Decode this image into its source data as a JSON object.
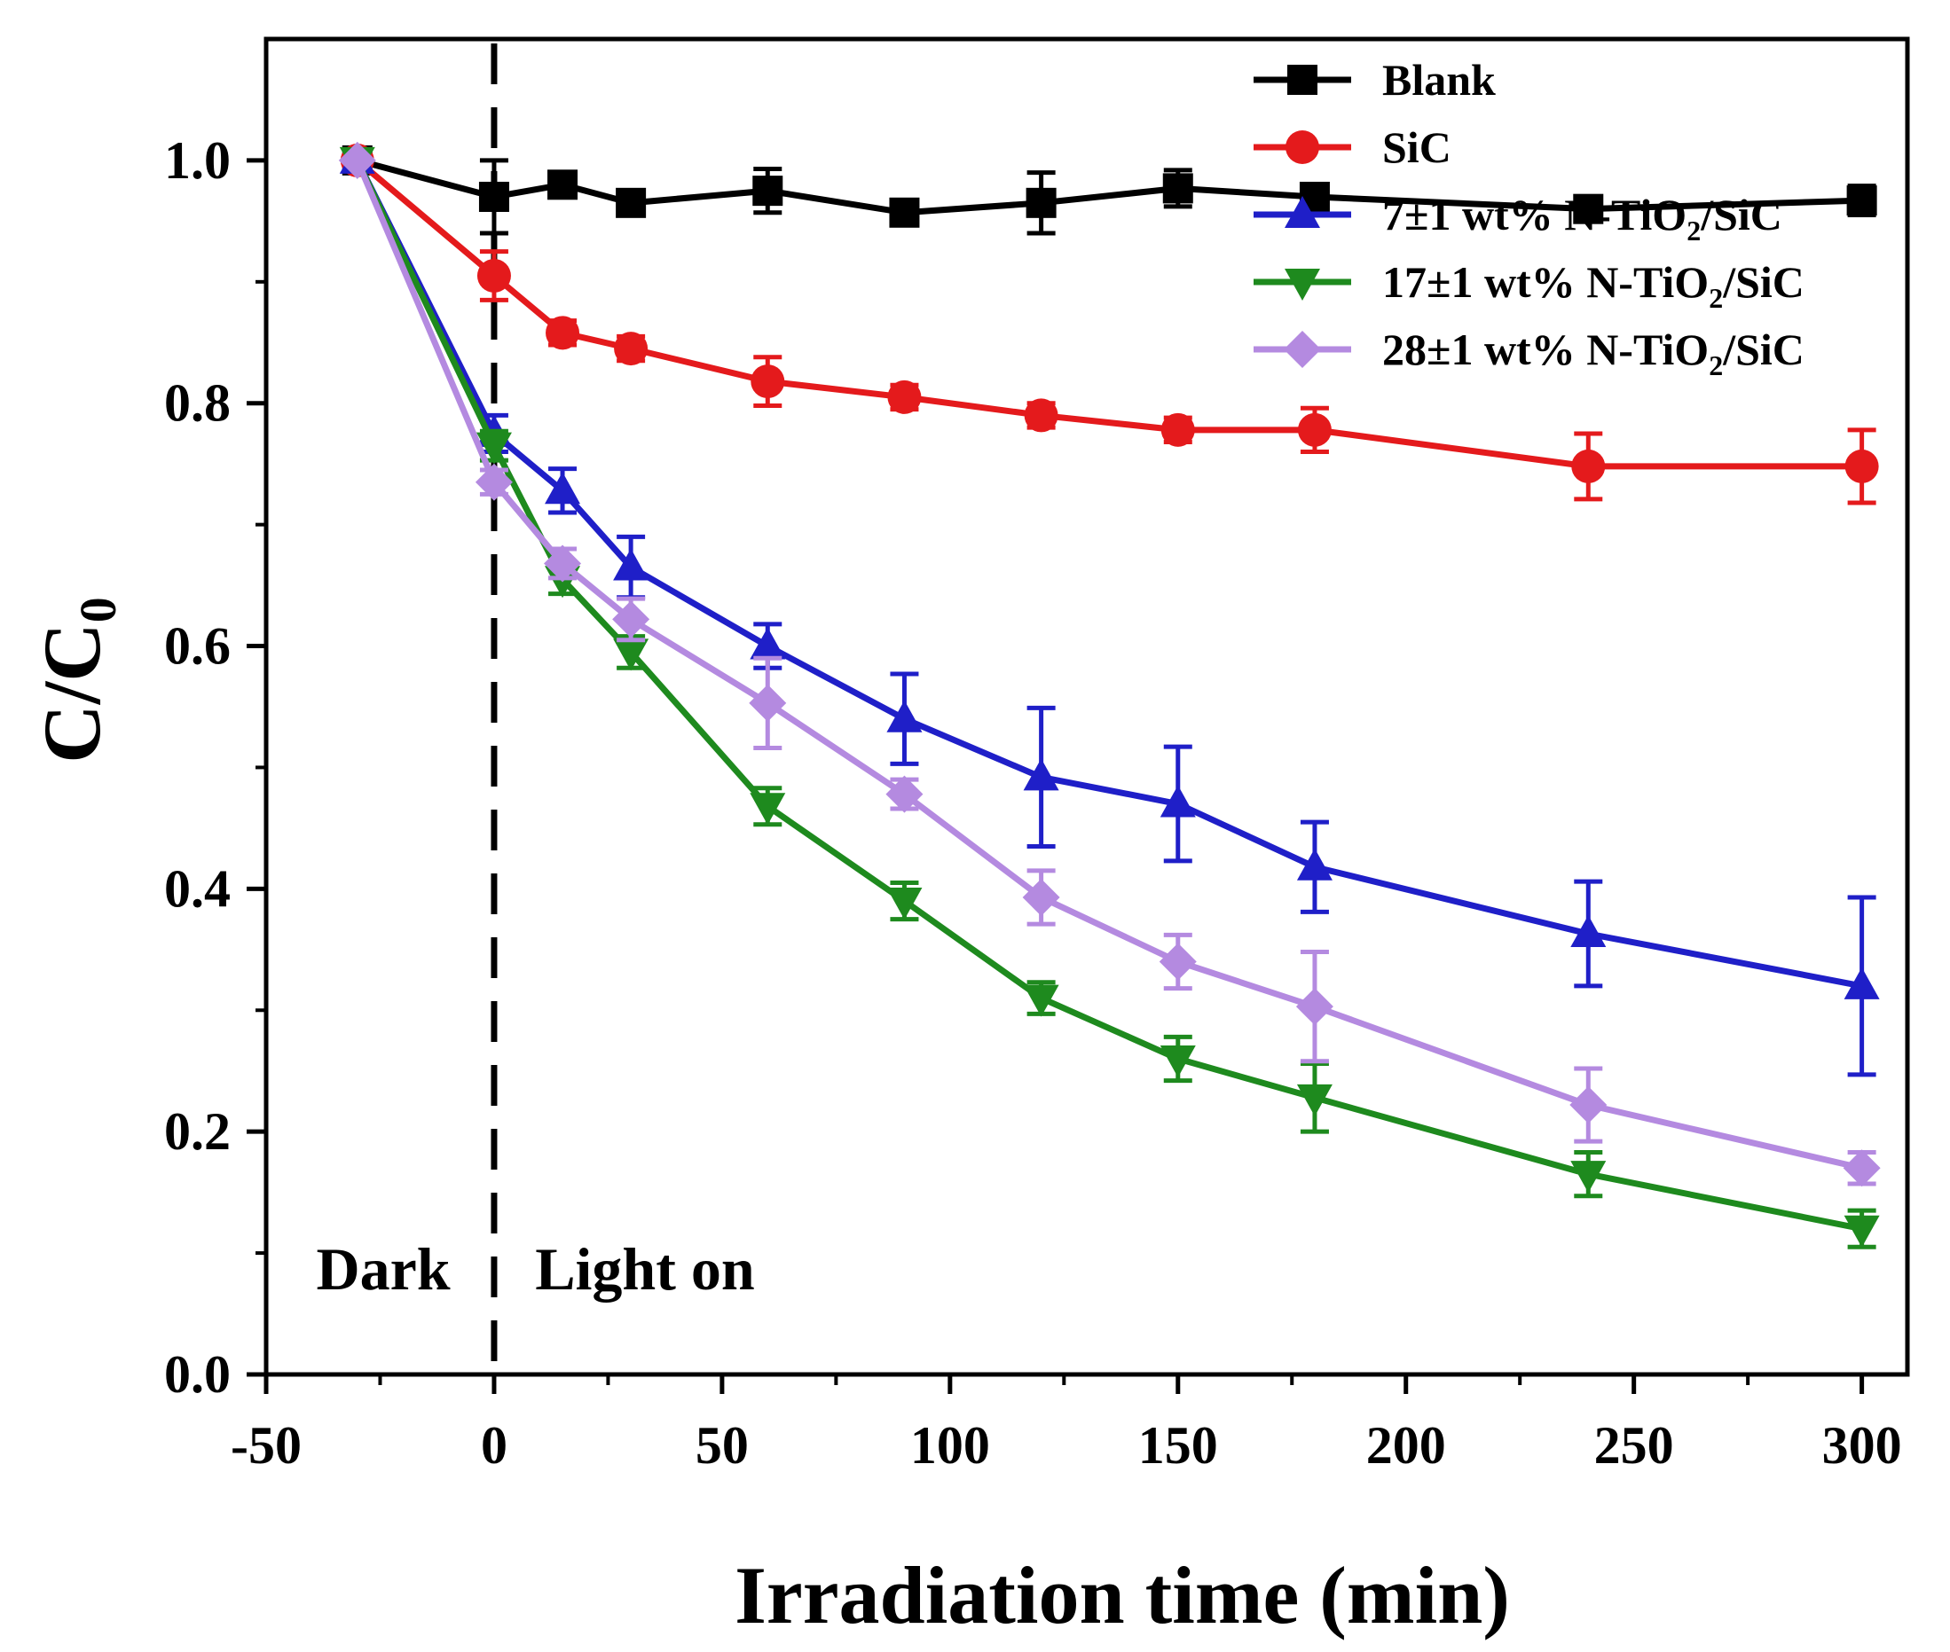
{
  "chart_data": {
    "type": "line",
    "xlabel": "Irradiation time  (min)",
    "ylabel": "C/C",
    "ylabel_sub": "0",
    "xlim": [
      -50,
      310
    ],
    "ylim": [
      0,
      1.1
    ],
    "xticks": [
      -50,
      0,
      50,
      100,
      150,
      200,
      250,
      300
    ],
    "xtick_labels": [
      "-50",
      "0",
      "50",
      "100",
      "150",
      "200",
      "250",
      "300"
    ],
    "yticks": [
      0,
      0.2,
      0.4,
      0.6,
      0.8,
      1.0
    ],
    "ytick_labels": [
      "0.0",
      "0.2",
      "0.4",
      "0.6",
      "0.8",
      "1.0"
    ],
    "legend_position": "top-right",
    "divider_x": 0,
    "annotations": {
      "dark": "Dark",
      "light": "Light on"
    },
    "x": [
      -30,
      0,
      15,
      30,
      60,
      90,
      120,
      150,
      180,
      240,
      300
    ],
    "series": [
      {
        "name": "Blank",
        "name_sub": "",
        "name_tail": "",
        "color": "#000000",
        "marker": "square",
        "values": [
          1.0,
          0.97,
          0.98,
          0.965,
          0.975,
          0.957,
          0.965,
          0.977,
          0.97,
          0.96,
          0.967
        ],
        "errors": [
          0,
          0.03,
          0.01,
          0.01,
          0.018,
          0.01,
          0.025,
          0.015,
          0.008,
          0.01,
          0.012
        ]
      },
      {
        "name": "SiC",
        "name_sub": "",
        "name_tail": "",
        "color": "#e41a1c",
        "marker": "circle",
        "values": [
          1.0,
          0.905,
          0.858,
          0.845,
          0.818,
          0.805,
          0.79,
          0.778,
          0.778,
          0.748,
          0.748
        ],
        "errors": [
          0,
          0.02,
          0.01,
          0.01,
          0.02,
          0.01,
          0.01,
          0.01,
          0.018,
          0.027,
          0.03
        ]
      },
      {
        "name": "7±1 wt% N-TiO",
        "name_sub": "2",
        "name_tail": "/SiC",
        "color": "#1f1fc8",
        "marker": "triangle-up",
        "values": [
          1.0,
          0.775,
          0.728,
          0.665,
          0.6,
          0.54,
          0.492,
          0.47,
          0.418,
          0.363,
          0.32
        ],
        "errors": [
          0,
          0.015,
          0.018,
          0.025,
          0.018,
          0.037,
          0.057,
          0.047,
          0.037,
          0.043,
          0.073
        ]
      },
      {
        "name": "17±1 wt% N-TiO",
        "name_sub": "2",
        "name_tail": "/SiC",
        "color": "#1e8a1e",
        "marker": "triangle-down",
        "values": [
          1.0,
          0.765,
          0.655,
          0.595,
          0.468,
          0.39,
          0.31,
          0.26,
          0.228,
          0.165,
          0.12
        ],
        "errors": [
          0,
          0.012,
          0.012,
          0.013,
          0.015,
          0.015,
          0.013,
          0.018,
          0.028,
          0.018,
          0.015
        ]
      },
      {
        "name": "28±1 wt% N-TiO",
        "name_sub": "2",
        "name_tail": "/SiC",
        "color": "#b48ae0",
        "marker": "diamond",
        "values": [
          1.0,
          0.735,
          0.668,
          0.622,
          0.553,
          0.478,
          0.393,
          0.34,
          0.303,
          0.222,
          0.17
        ],
        "errors": [
          0,
          0.01,
          0.012,
          0.017,
          0.037,
          0.012,
          0.022,
          0.022,
          0.045,
          0.03,
          0.013
        ]
      }
    ]
  }
}
